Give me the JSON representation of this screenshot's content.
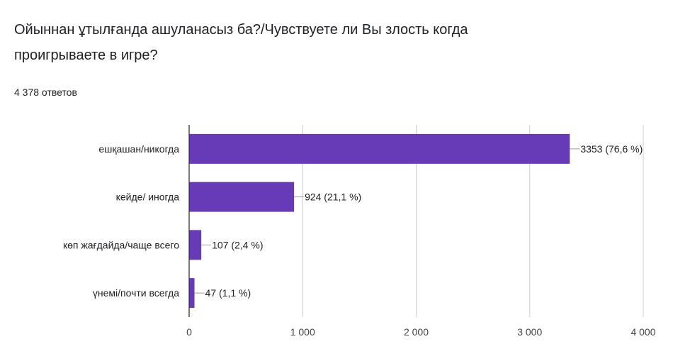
{
  "question": {
    "title": "Ойыннан ұтылғанда ашуланасыз ба?/Чувствуете ли Вы злость когда проигрываете в игре?",
    "responses": "4 378 ответов"
  },
  "colors": {
    "bar": "#673ab7",
    "axis": "#333333",
    "grid": "#cccccc"
  },
  "chart_data": {
    "type": "bar",
    "orientation": "horizontal",
    "categories": [
      "ешқашан/никогда",
      "кейде/ иногда",
      "көп жағдайда/чаще всего",
      "үнемі/почти всегда"
    ],
    "values": [
      3353,
      924,
      107,
      47
    ],
    "value_labels": [
      "3353 (76,6 %)",
      "924 (21,1 %)",
      "107 (2,4 %)",
      "47 (1,1 %)"
    ],
    "xlim": [
      0,
      4000
    ],
    "xticks": [
      0,
      1000,
      2000,
      3000,
      4000
    ],
    "xtick_labels": [
      "0",
      "1 000",
      "2 000",
      "3 000",
      "4 000"
    ],
    "grid": true
  }
}
